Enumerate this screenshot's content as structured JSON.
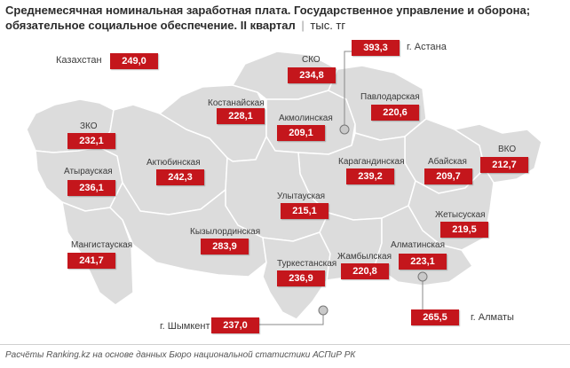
{
  "title": {
    "main": "Среднемесячная номинальная заработная плата. Государственное управление и оборона; обязательное социальное обеспечение. II квартал",
    "sep": "|",
    "unit": "тыс. тг"
  },
  "colors": {
    "region_fill": "#dcdcdc",
    "border": "#ffffff",
    "value_box": "#c4161c",
    "leader": "#888888"
  },
  "regions": {
    "kazakhstan": {
      "name": "Казахстан",
      "value": "249,0"
    },
    "sko": {
      "name": "СКО",
      "value": "234,8"
    },
    "astana": {
      "name": "г. Астана",
      "value": "393,3"
    },
    "kostanayskaya": {
      "name": "Костанайская",
      "value": "228,1"
    },
    "akmolinskaya": {
      "name": "Акмолинская",
      "value": "209,1"
    },
    "pavlodarskaya": {
      "name": "Павлодарская",
      "value": "220,6"
    },
    "zko": {
      "name": "ЗКО",
      "value": "232,1"
    },
    "atyrauskaya": {
      "name": "Атырауская",
      "value": "236,1"
    },
    "aktyubinskaya": {
      "name": "Актюбинская",
      "value": "242,3"
    },
    "karagandinskaya": {
      "name": "Карагандинская",
      "value": "239,2"
    },
    "abayskaya": {
      "name": "Абайская",
      "value": "209,7"
    },
    "vko": {
      "name": "ВКО",
      "value": "212,7"
    },
    "ulytauskaya": {
      "name": "Улытауская",
      "value": "215,1"
    },
    "zhetysuskaya": {
      "name": "Жетысуская",
      "value": "219,5"
    },
    "mangistauskaya": {
      "name": "Мангистауская",
      "value": "241,7"
    },
    "kyzylordinskaya": {
      "name": "Кызылординская",
      "value": "283,9"
    },
    "turkestanskaya": {
      "name": "Туркестанская",
      "value": "236,9"
    },
    "zhambylskaya": {
      "name": "Жамбылская",
      "value": "220,8"
    },
    "almatinskaya": {
      "name": "Алматинская",
      "value": "223,1"
    },
    "almaty": {
      "name": "г. Алматы",
      "value": "265,5"
    },
    "shymkent": {
      "name": "г. Шымкент",
      "value": "237,0"
    }
  },
  "footer": "Расчёты Ranking.kz на основе данных Бюро национальной статистики АСПиР РК"
}
